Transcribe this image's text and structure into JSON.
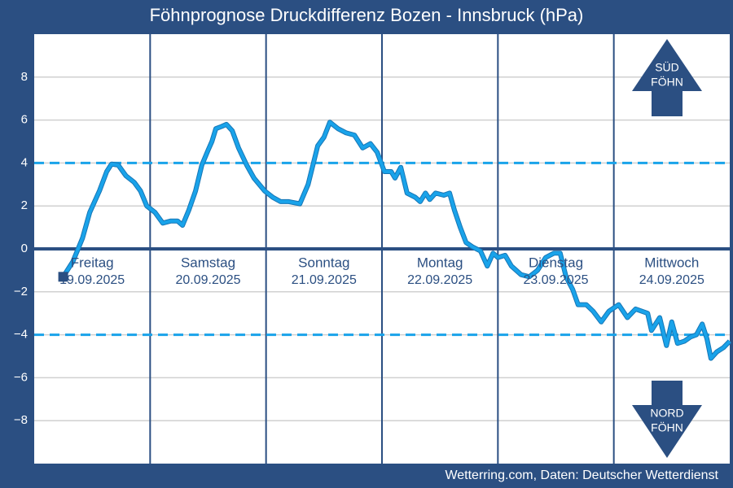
{
  "chart_data": {
    "type": "line",
    "title": "Föhnprognose Druckdifferenz Bozen - Innsbruck (hPa)",
    "source": "Wetterring.com, Daten: Deutscher Wetterdienst",
    "color": "#19a3ea",
    "xlim": [
      0,
      144
    ],
    "xticks": [
      24,
      48,
      72,
      96,
      120
    ],
    "ylim": [
      -10,
      10
    ],
    "yticks": [
      {
        "value": -8,
        "label": "−8"
      },
      {
        "value": -6,
        "label": "−6"
      },
      {
        "value": -4,
        "label": "−4"
      },
      {
        "value": -2,
        "label": "−2"
      },
      0,
      2,
      4,
      6,
      8
    ],
    "grid": true,
    "reference_lines": [
      {
        "value": 4,
        "style": "dashed",
        "color": "#19a3ea"
      },
      {
        "value": -4,
        "style": "dashed",
        "color": "#19a3ea"
      },
      {
        "value": 0,
        "style": "solid",
        "color": "#2b4f82"
      }
    ],
    "days": [
      {
        "name": "Freitag",
        "date": "19.09.2025"
      },
      {
        "name": "Samstag",
        "date": "20.09.2025"
      },
      {
        "name": "Sonntag",
        "date": "21.09.2025"
      },
      {
        "name": "Montag",
        "date": "22.09.2025"
      },
      {
        "name": "Dienstag",
        "date": "23.09.2025"
      },
      {
        "name": "Mittwoch",
        "date": "24.09.2025"
      }
    ],
    "arrows": {
      "up": [
        "SÜD",
        "FÖHN"
      ],
      "down": [
        "NORD",
        "FÖHN"
      ]
    },
    "x": [
      6,
      8,
      10,
      11.5,
      13.5,
      15,
      16,
      17.4,
      19,
      20.7,
      22,
      23.3,
      25,
      26.6,
      28.3,
      29.7,
      30.7,
      32,
      33.4,
      34.7,
      36,
      36.8,
      37.6,
      38.8,
      39.8,
      41,
      42.3,
      44,
      45.5,
      47.7,
      49.4,
      51,
      52.7,
      55,
      56.7,
      58.7,
      60,
      61.2,
      62.9,
      64.6,
      66.3,
      68,
      69.6,
      71,
      72.5,
      73.9,
      74.7,
      75.9,
      77.2,
      78.9,
      79.9,
      81,
      81.9,
      83.1,
      84.8,
      86,
      87,
      88.2,
      89.4,
      90.7,
      92.4,
      93.8,
      95,
      96,
      97.5,
      98.8,
      100.8,
      102.5,
      104.2,
      105.9,
      107.6,
      108.9,
      110.1,
      111.5,
      112.6,
      114.3,
      115.7,
      117.4,
      119,
      121,
      122.8,
      124.5,
      127,
      127.8,
      129.5,
      130.9,
      132,
      133.2,
      134.6,
      135.9,
      137.1,
      138.3,
      139.3,
      140.1,
      141.3,
      142.7,
      144
    ],
    "values": [
      -1.3,
      -0.6,
      0.5,
      1.7,
      2.7,
      3.6,
      3.95,
      3.9,
      3.4,
      3.1,
      2.7,
      2.0,
      1.7,
      1.2,
      1.3,
      1.3,
      1.1,
      1.8,
      2.7,
      3.9,
      4.6,
      5.0,
      5.6,
      5.7,
      5.8,
      5.5,
      4.7,
      3.9,
      3.3,
      2.7,
      2.4,
      2.2,
      2.2,
      2.1,
      3.0,
      4.8,
      5.2,
      5.9,
      5.6,
      5.4,
      5.3,
      4.7,
      4.9,
      4.5,
      3.6,
      3.6,
      3.3,
      3.8,
      2.6,
      2.4,
      2.2,
      2.6,
      2.3,
      2.6,
      2.5,
      2.6,
      1.8,
      1.0,
      0.3,
      0.1,
      -0.1,
      -0.8,
      -0.2,
      -0.4,
      -0.3,
      -0.8,
      -1.2,
      -1.3,
      -1.0,
      -0.4,
      -0.2,
      -0.2,
      -1.3,
      -1.9,
      -2.6,
      -2.6,
      -2.9,
      -3.4,
      -2.9,
      -2.6,
      -3.2,
      -2.8,
      -3.0,
      -3.8,
      -3.2,
      -4.5,
      -3.4,
      -4.4,
      -4.3,
      -4.1,
      -4.0,
      -3.5,
      -4.2,
      -5.1,
      -4.8,
      -4.6,
      -4.3
    ]
  }
}
